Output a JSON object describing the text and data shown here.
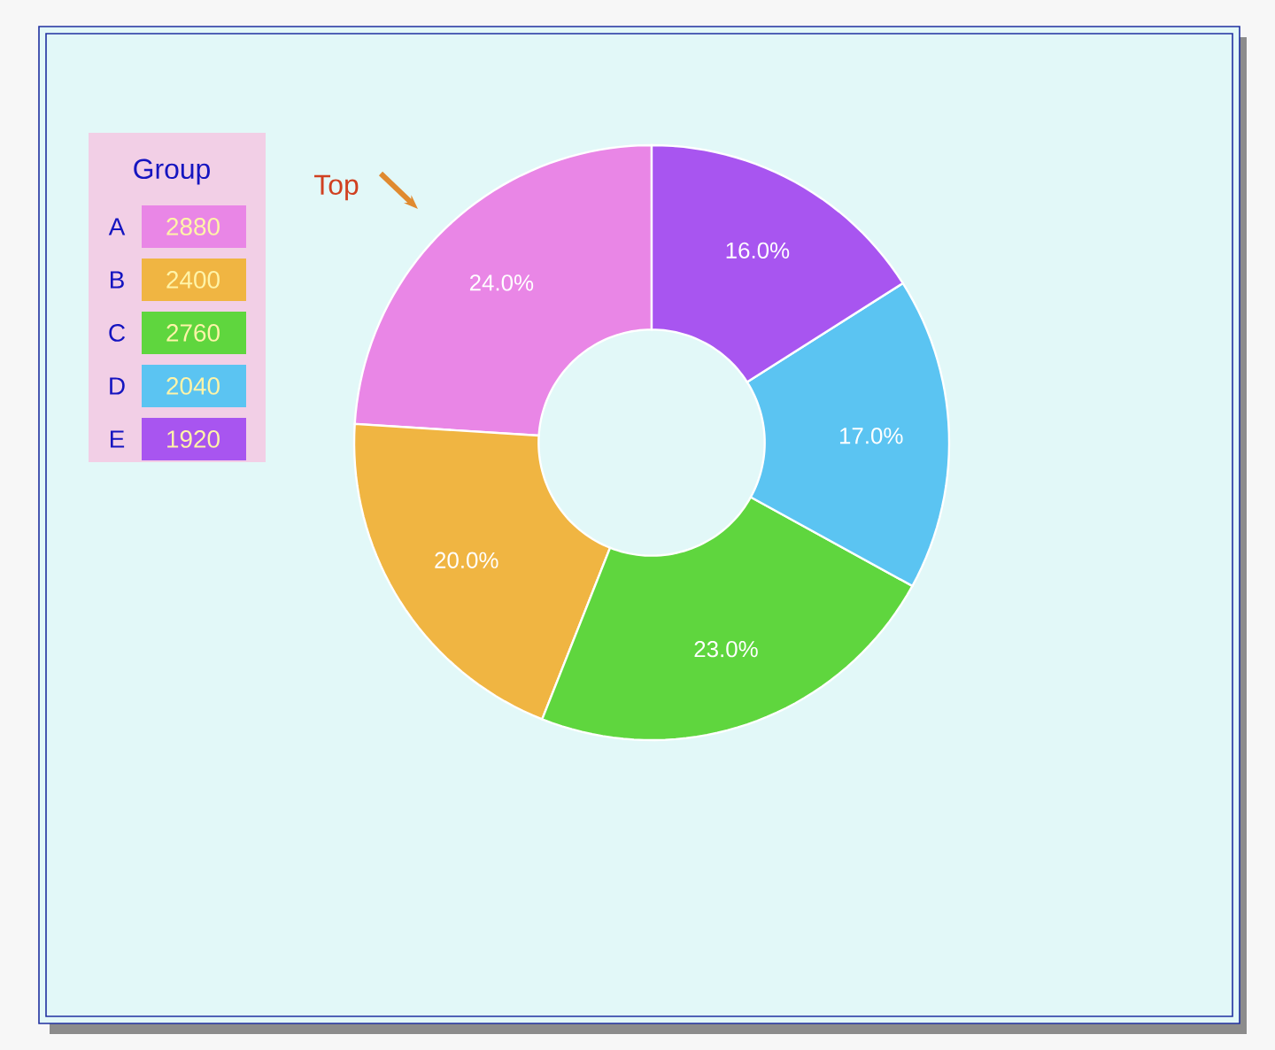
{
  "chart_data": {
    "type": "donut",
    "legend_title": "Group",
    "categories": [
      "A",
      "B",
      "C",
      "D",
      "E"
    ],
    "values": [
      24,
      20,
      23,
      17,
      16
    ],
    "colors": [
      "#e986e6",
      "#f0b542",
      "#5fd63e",
      "#5bc4f2",
      "#a855f0"
    ],
    "value_labels": [
      "24.0%",
      "20.0%",
      "23.0%",
      "17.0%",
      "16.0%"
    ],
    "legend": "top left",
    "annotations": [
      "Top",
      "2880",
      "2400",
      "2760",
      "2040",
      "1920"
    ]
  }
}
